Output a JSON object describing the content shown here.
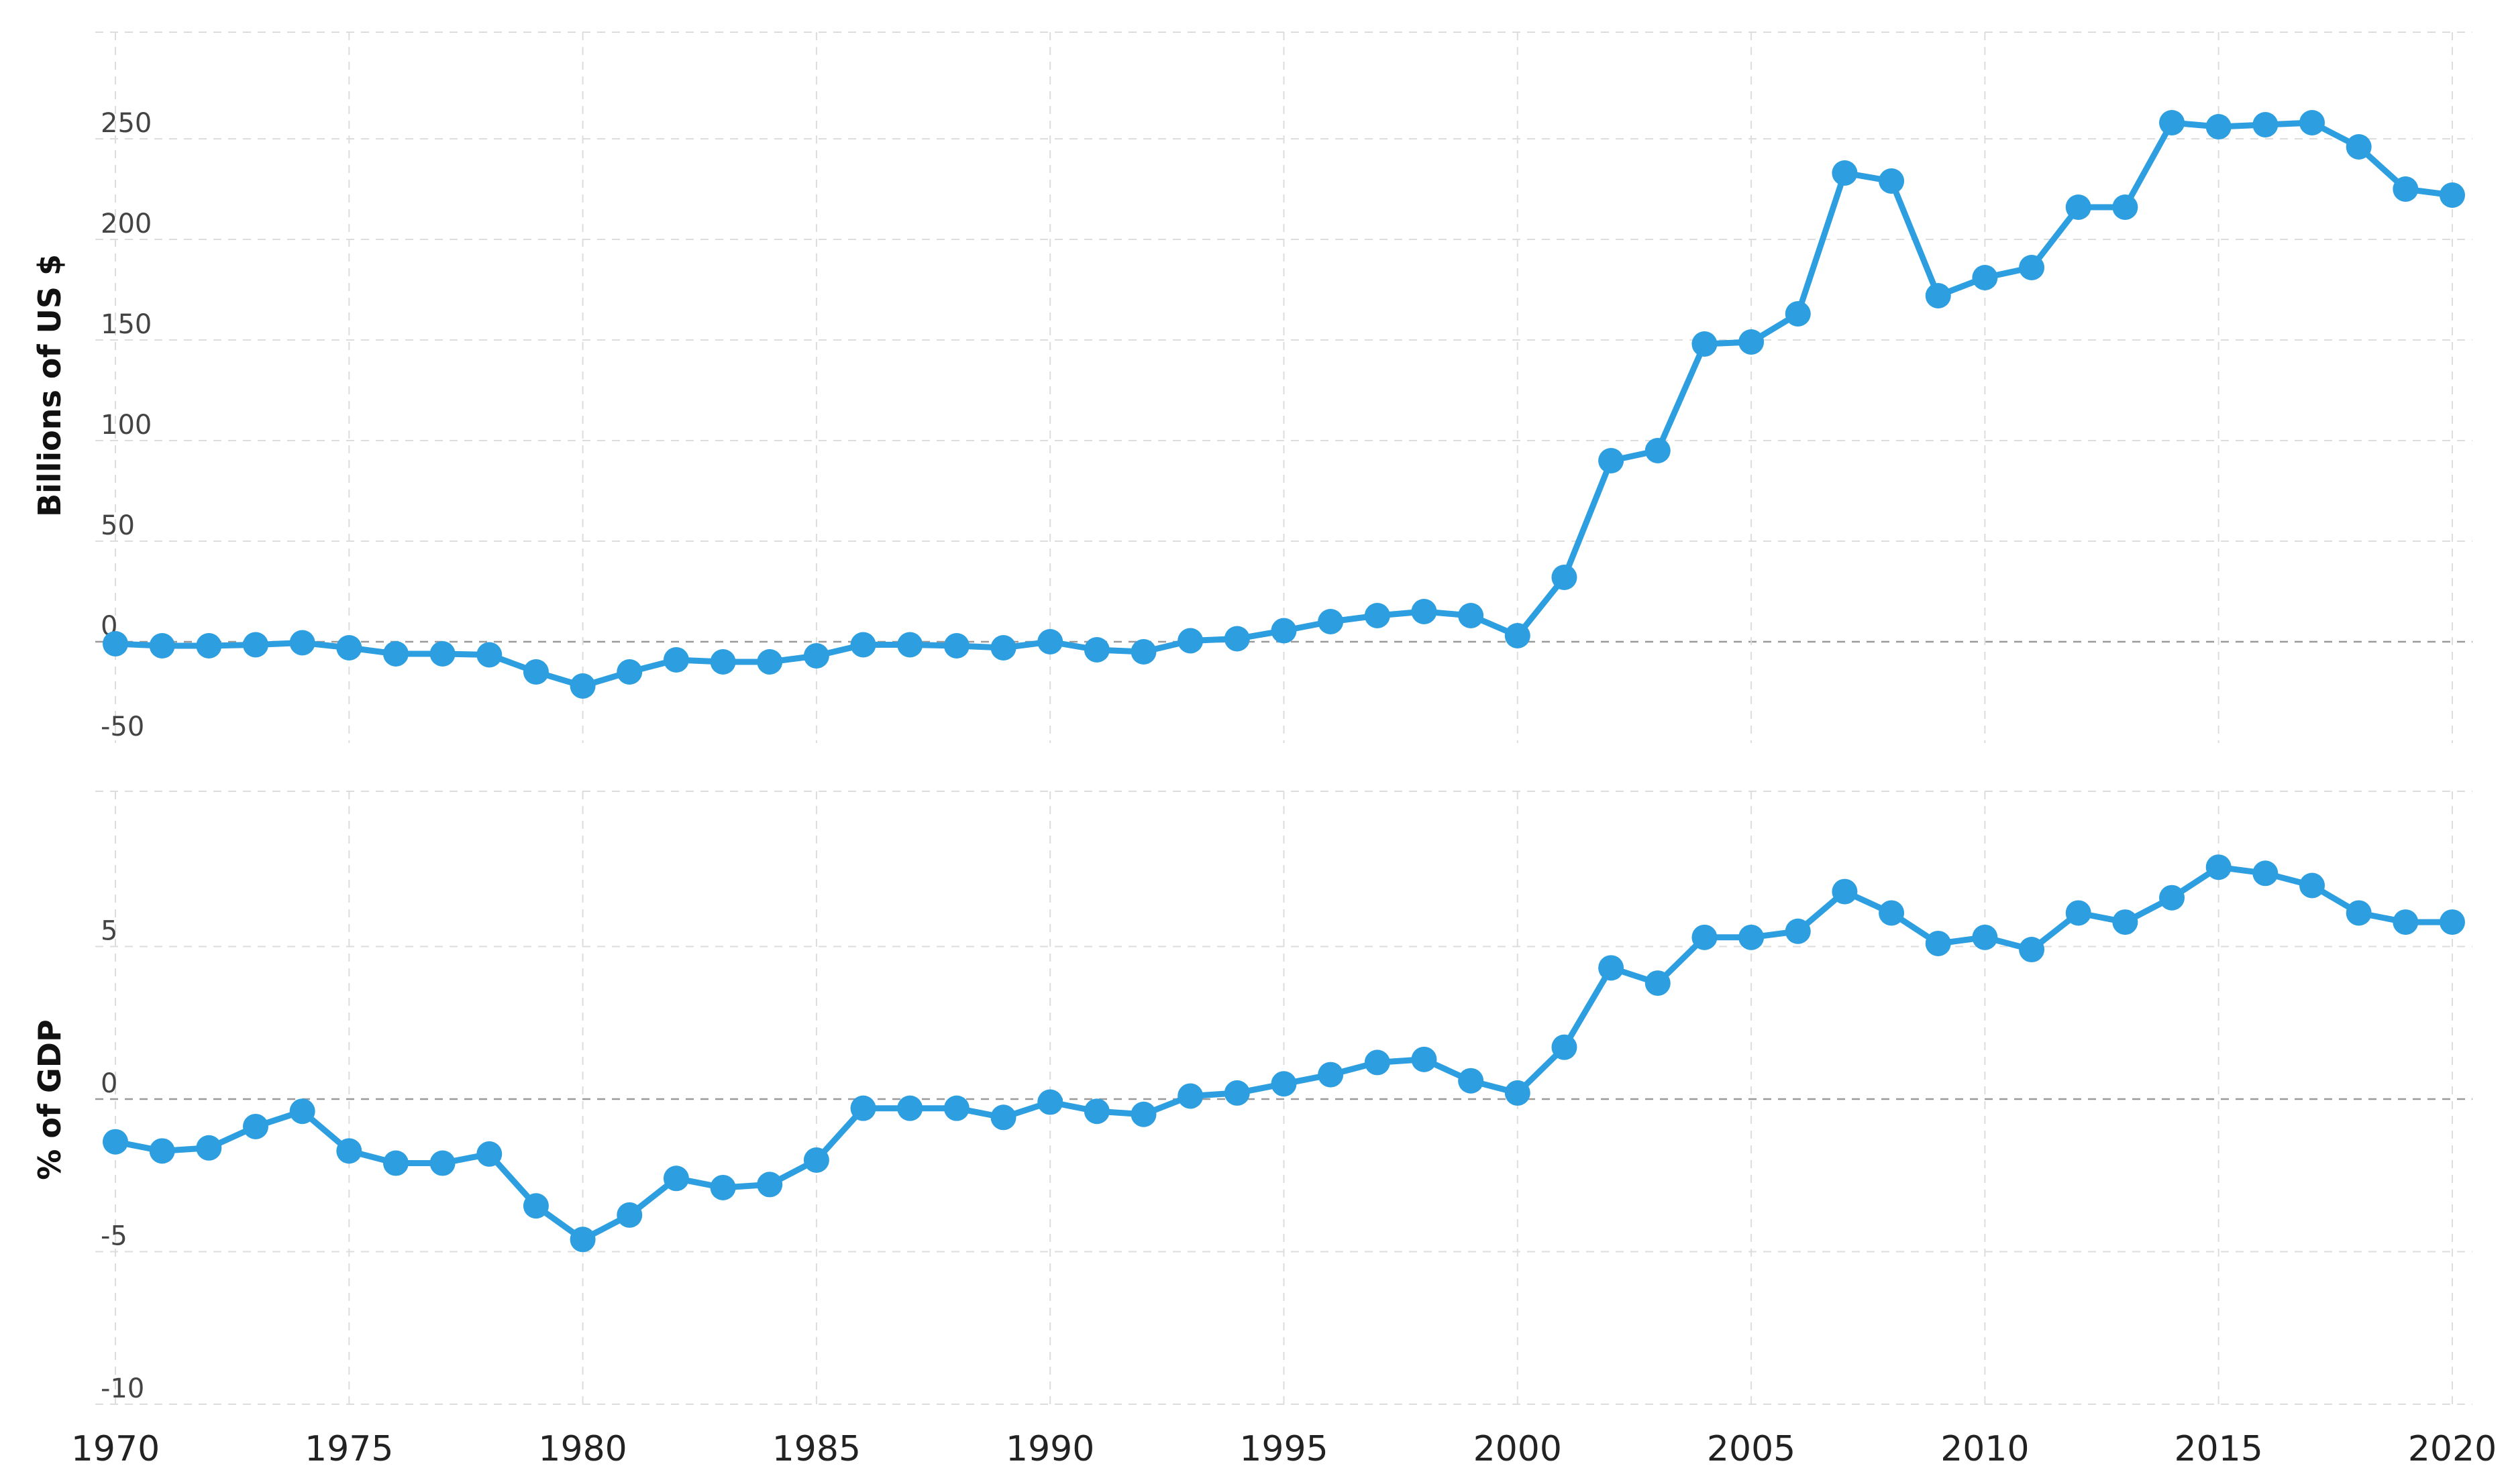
{
  "chart_data": [
    {
      "type": "line",
      "ylabel": "Billions of US $",
      "ylim": [
        -50,
        280
      ],
      "yticks": [
        "250",
        "200",
        "150",
        "100",
        "50",
        "0",
        "-50"
      ],
      "grid": true,
      "x": [
        1970,
        1971,
        1972,
        1973,
        1974,
        1975,
        1976,
        1977,
        1978,
        1979,
        1980,
        1981,
        1982,
        1983,
        1984,
        1985,
        1986,
        1987,
        1988,
        1989,
        1990,
        1991,
        1992,
        1993,
        1994,
        1995,
        1996,
        1997,
        1998,
        1999,
        2000,
        2001,
        2002,
        2003,
        2004,
        2005,
        2006,
        2007,
        2008,
        2009,
        2010,
        2011,
        2012,
        2013,
        2014,
        2015,
        2016,
        2017,
        2018,
        2019,
        2020
      ],
      "series": [
        {
          "color": "#2d9fe0",
          "values": [
            -1,
            -2,
            -2,
            -1.5,
            -0.5,
            -3,
            -6,
            -6,
            -6.5,
            -15,
            -22,
            -15,
            -9,
            -10,
            -10,
            -7,
            -1.5,
            -1.5,
            -2,
            -3,
            0,
            -4,
            -5,
            0.5,
            1.5,
            5.5,
            10,
            13,
            15,
            13,
            3,
            32,
            90,
            95,
            148,
            149,
            163,
            233,
            229,
            172,
            181,
            186,
            216,
            216,
            258,
            256,
            257,
            258,
            246,
            225,
            222
          ]
        }
      ]
    },
    {
      "type": "line",
      "ylabel": "% of GDP",
      "ylim": [
        -11,
        10
      ],
      "yticks": [
        "5",
        "0",
        "-5",
        "-10"
      ],
      "xticks": [
        "1970",
        "1975",
        "1980",
        "1985",
        "1990",
        "1995",
        "2000",
        "2005",
        "2010",
        "2015",
        "2020"
      ],
      "grid": true,
      "x": [
        1970,
        1971,
        1972,
        1973,
        1974,
        1975,
        1976,
        1977,
        1978,
        1979,
        1980,
        1981,
        1982,
        1983,
        1984,
        1985,
        1986,
        1987,
        1988,
        1989,
        1990,
        1991,
        1992,
        1993,
        1994,
        1995,
        1996,
        1997,
        1998,
        1999,
        2000,
        2001,
        2002,
        2003,
        2004,
        2005,
        2006,
        2007,
        2008,
        2009,
        2010,
        2011,
        2012,
        2013,
        2014,
        2015,
        2016,
        2017,
        2018,
        2019,
        2020
      ],
      "series": [
        {
          "color": "#2d9fe0",
          "values": [
            -1.4,
            -1.7,
            -1.6,
            -0.9,
            -0.4,
            -1.7,
            -2.1,
            -2.1,
            -1.8,
            -3.5,
            -4.6,
            -3.8,
            -2.6,
            -2.9,
            -2.8,
            -2.0,
            -0.3,
            -0.3,
            -0.3,
            -0.6,
            -0.1,
            -0.4,
            -0.5,
            0.1,
            0.2,
            0.5,
            0.8,
            1.2,
            1.3,
            0.6,
            0.2,
            1.7,
            4.3,
            3.8,
            5.3,
            5.3,
            5.5,
            6.8,
            6.1,
            5.1,
            5.3,
            4.9,
            6.1,
            5.8,
            6.6,
            7.6,
            7.4,
            7.0,
            6.1,
            5.8,
            5.8
          ]
        }
      ]
    }
  ]
}
